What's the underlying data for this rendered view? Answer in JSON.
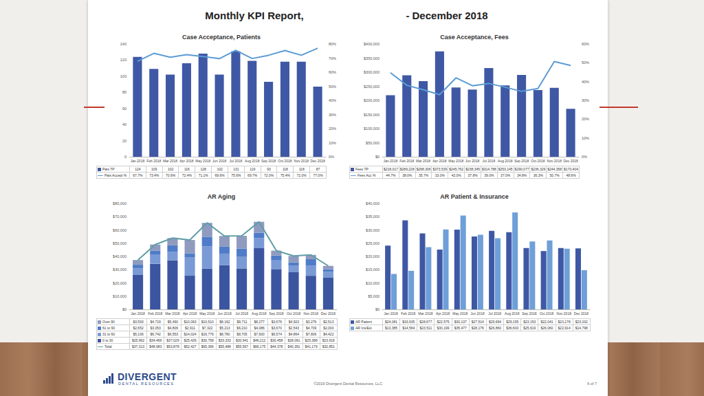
{
  "header": {
    "title": "Monthly KPI Report,",
    "subtitle": "- December 2018"
  },
  "footer": {
    "logo": "DIVERGENT",
    "logo_sub": "DENTAL RESOURCES",
    "copyright": "©2019 Divergent Dental Resources, LLC",
    "page": "6 of 7"
  },
  "chart_data": [
    {
      "type": "bar",
      "title": "Case Acceptance, Patients",
      "categories": [
        "Jan 2018",
        "Feb 2018",
        "Mar 2018",
        "Apr 2018",
        "May 2018",
        "Jun 2018",
        "Jul 2018",
        "Aug 2018",
        "Sep 2018",
        "Oct 2018",
        "Nov 2018",
        "Dec 2018"
      ],
      "series": [
        {
          "name": "Pats TP",
          "type": "bar",
          "color": "#3f58a5",
          "values": [
            124,
            109,
            102,
            116,
            128,
            102,
            131,
            119,
            93,
            118,
            118,
            87
          ]
        },
        {
          "name": "Pats Accept %",
          "type": "line",
          "axis": "y2",
          "color": "#5b9bd5",
          "line_style": "solid",
          "values": [
            67.7,
            73.4,
            70.6,
            72.4,
            71.1,
            69.6,
            75.6,
            69.7,
            72.0,
            75.4,
            72.0,
            77.0
          ],
          "value_labels": [
            "67.7%",
            "73.4%",
            "70.6%",
            "72.4%",
            "71.1%",
            "69.6%",
            "75.6%",
            "69.7%",
            "72.0%",
            "75.4%",
            "72.0%",
            "77.0%"
          ]
        }
      ],
      "ylim": [
        0,
        140
      ],
      "yticks": [
        0,
        20,
        40,
        60,
        80,
        100,
        120,
        140
      ],
      "y2lim": [
        0,
        80
      ],
      "y2ticks": [
        {
          "value": 0,
          "label": "0%"
        },
        {
          "value": 10,
          "label": "10%"
        },
        {
          "value": 20,
          "label": "20%"
        },
        {
          "value": 30,
          "label": "30%"
        },
        {
          "value": 40,
          "label": "40%"
        },
        {
          "value": 50,
          "label": "50%"
        },
        {
          "value": 60,
          "label": "60%"
        },
        {
          "value": 70,
          "label": "70%"
        },
        {
          "value": 80,
          "label": "80%"
        }
      ],
      "grid": false
    },
    {
      "type": "bar",
      "title": "Case Acceptance, Fees",
      "categories": [
        "Jan 2018",
        "Feb 2018",
        "Mar 2018",
        "Apr 2018",
        "May 2018",
        "Jun 2018",
        "Jul 2018",
        "Aug 2018",
        "Sep 2018",
        "Oct 2018",
        "Nov 2018",
        "Dec 2018"
      ],
      "series": [
        {
          "name": "Fees TP",
          "type": "bar",
          "color": "#3f58a5",
          "values": [
            218017,
            289228,
            268306,
            373539,
            245762,
            238345,
            314788,
            253145,
            290077,
            236329,
            244358,
            170404
          ],
          "value_labels": [
            "$218,017",
            "$289,228",
            "$268,306",
            "$373,539",
            "$245,762",
            "$238,345",
            "$314,788",
            "$253,145",
            "$290,077",
            "$236,329",
            "$244,358",
            "$170,404"
          ]
        },
        {
          "name": "Fees Acc %",
          "type": "line",
          "axis": "y2",
          "color": "#5b9bd5",
          "line_style": "solid",
          "values": [
            44.7,
            38.0,
            35.7,
            33.0,
            42.0,
            37.8,
            39.0,
            37.0,
            34.8,
            36.3,
            50.7,
            48.6
          ],
          "value_labels": [
            "44.7%",
            "38.0%",
            "35.7%",
            "33.0%",
            "42.0%",
            "37.8%",
            "39.0%",
            "37.0%",
            "34.8%",
            "36.3%",
            "50.7%",
            "48.6%"
          ]
        }
      ],
      "ylim": [
        0,
        400000
      ],
      "yticks": [
        {
          "value": 0,
          "label": "$0"
        },
        {
          "value": 50000,
          "label": "$50,000"
        },
        {
          "value": 100000,
          "label": "$100,000"
        },
        {
          "value": 150000,
          "label": "$150,000"
        },
        {
          "value": 200000,
          "label": "$200,000"
        },
        {
          "value": 250000,
          "label": "$250,000"
        },
        {
          "value": 300000,
          "label": "$300,000"
        },
        {
          "value": 350000,
          "label": "$350,000"
        },
        {
          "value": 400000,
          "label": "$400,000"
        }
      ],
      "y2lim": [
        0,
        60
      ],
      "y2ticks": [
        {
          "value": 0,
          "label": "0%"
        },
        {
          "value": 10,
          "label": "10%"
        },
        {
          "value": 20,
          "label": "20%"
        },
        {
          "value": 30,
          "label": "30%"
        },
        {
          "value": 40,
          "label": "40%"
        },
        {
          "value": 50,
          "label": "50%"
        },
        {
          "value": 60,
          "label": "60%"
        }
      ],
      "grid": false
    },
    {
      "type": "bar",
      "title": "AR Aging",
      "stacked": true,
      "categories": [
        "Jan 2018",
        "Feb 2018",
        "Mar 2018",
        "Apr 2018",
        "May 2018",
        "Jun 2018",
        "Jul 2018",
        "Aug 2018",
        "Sep 2018",
        "Oct 2018",
        "Nov 2018",
        "Dec 2018"
      ],
      "series": [
        {
          "name": "Over 90",
          "type": "bar",
          "color": "#8f9bbf",
          "values": [
            3593,
            4719,
            5490,
            10063,
            10510,
            8162,
            9711,
            8277,
            3676,
            4923,
            3276,
            2513
          ],
          "value_labels": [
            "$3,593",
            "$4,719",
            "$5,490",
            "$10,063",
            "$10,510",
            "$8,162",
            "$9,711",
            "$8,277",
            "$3,676",
            "$4,923",
            "$3,276",
            "$2,513"
          ]
        },
        {
          "name": "61 to 90",
          "type": "bar",
          "color": "#4f7cc8",
          "values": [
            2652,
            3053,
            4806,
            2911,
            7322,
            5213,
            6210,
            4086,
            3670,
            2543,
            4709,
            2000
          ],
          "value_labels": [
            "$2,652",
            "$3,053",
            "$4,806",
            "$2,911",
            "$7,322",
            "$5,213",
            "$6,210",
            "$4,086",
            "$3,670",
            "$2,543",
            "$4,709",
            "$2,000"
          ]
        },
        {
          "name": "31 to 60",
          "type": "bar",
          "color": "#7a9ad6",
          "values": [
            5106,
            6742,
            6553,
            14024,
            16776,
            8780,
            8705,
            7600,
            6574,
            4864,
            7806,
            4422
          ],
          "value_labels": [
            "$5,106",
            "$6,742",
            "$6,553",
            "$14,024",
            "$16,776",
            "$8,780",
            "$8,705",
            "$7,600",
            "$6,574",
            "$4,864",
            "$7,806",
            "$4,422"
          ]
        },
        {
          "name": "0 to 30",
          "type": "bar",
          "color": "#3c55a0",
          "values": [
            25962,
            34469,
            37029,
            25429,
            30758,
            33333,
            30941,
            46212,
            30458,
            28061,
            25388,
            23916
          ],
          "value_labels": [
            "$25,962",
            "$34,469",
            "$37,029",
            "$25,429",
            "$30,758",
            "$33,333",
            "$30,941",
            "$46,212",
            "$30,458",
            "$28,061",
            "$25,388",
            "$23,916"
          ]
        },
        {
          "name": "Total",
          "type": "line",
          "color": "#5f9ea8",
          "line_style": "solid",
          "values": [
            37313,
            48983,
            53878,
            52427,
            65366,
            55488,
            55567,
            66175,
            44378,
            40391,
            41179,
            32851
          ],
          "value_labels": [
            "$37,313",
            "$48,983",
            "$53,878",
            "$52,427",
            "$65,366",
            "$55,488",
            "$55,567",
            "$66,175",
            "$44,378",
            "$40,391",
            "$41,179",
            "$32,851"
          ]
        }
      ],
      "ylim": [
        0,
        80000
      ],
      "yticks": [
        {
          "value": 0,
          "label": "$0"
        },
        {
          "value": 10000,
          "label": "$10,000"
        },
        {
          "value": 20000,
          "label": "$20,000"
        },
        {
          "value": 30000,
          "label": "$30,000"
        },
        {
          "value": 40000,
          "label": "$40,000"
        },
        {
          "value": 50000,
          "label": "$50,000"
        },
        {
          "value": 60000,
          "label": "$60,000"
        },
        {
          "value": 70000,
          "label": "$70,000"
        },
        {
          "value": 80000,
          "label": "$80,000"
        }
      ],
      "grid": false
    },
    {
      "type": "bar",
      "title": "AR Patient & Insurance",
      "categories": [
        "Jan 2018",
        "Feb 2018",
        "Mar 2018",
        "Apr 2018",
        "May 2018",
        "Jun 2018",
        "Jul 2018",
        "Aug 2018",
        "Sep 2018",
        "Oct 2018",
        "Nov 2018",
        "Dec 2018"
      ],
      "series": [
        {
          "name": "AR Patient",
          "type": "bar",
          "color": "#3f58a5",
          "values": [
            24081,
            33635,
            28677,
            22575,
            30137,
            27514,
            29694,
            29155,
            23153,
            22041,
            23178,
            23032
          ],
          "value_labels": [
            "$24,081",
            "$33,635",
            "$28,677",
            "$22,575",
            "$30,137",
            "$27,514",
            "$29,694",
            "$29,155",
            "$23,153",
            "$22,041",
            "$23,178",
            "$23,032"
          ]
        },
        {
          "name": "AR Ins/Est",
          "type": "bar",
          "color": "#6e9fd8",
          "values": [
            13385,
            14564,
            23511,
            30199,
            35477,
            28176,
            26860,
            36600,
            25619,
            26060,
            22914,
            14798
          ],
          "value_labels": [
            "$13,385",
            "$14,564",
            "$23,511",
            "$30,199",
            "$35,477",
            "$28,176",
            "$26,860",
            "$36,600",
            "$25,619",
            "$26,060",
            "$22,914",
            "$14,798"
          ]
        }
      ],
      "ylim": [
        0,
        40000
      ],
      "yticks": [
        {
          "value": 0,
          "label": "$0"
        },
        {
          "value": 5000,
          "label": "$5,000"
        },
        {
          "value": 10000,
          "label": "$10,000"
        },
        {
          "value": 15000,
          "label": "$15,000"
        },
        {
          "value": 20000,
          "label": "$20,000"
        },
        {
          "value": 25000,
          "label": "$25,000"
        },
        {
          "value": 30000,
          "label": "$30,000"
        },
        {
          "value": 35000,
          "label": "$35,000"
        },
        {
          "value": 40000,
          "label": "$40,000"
        }
      ],
      "grid": false
    }
  ]
}
